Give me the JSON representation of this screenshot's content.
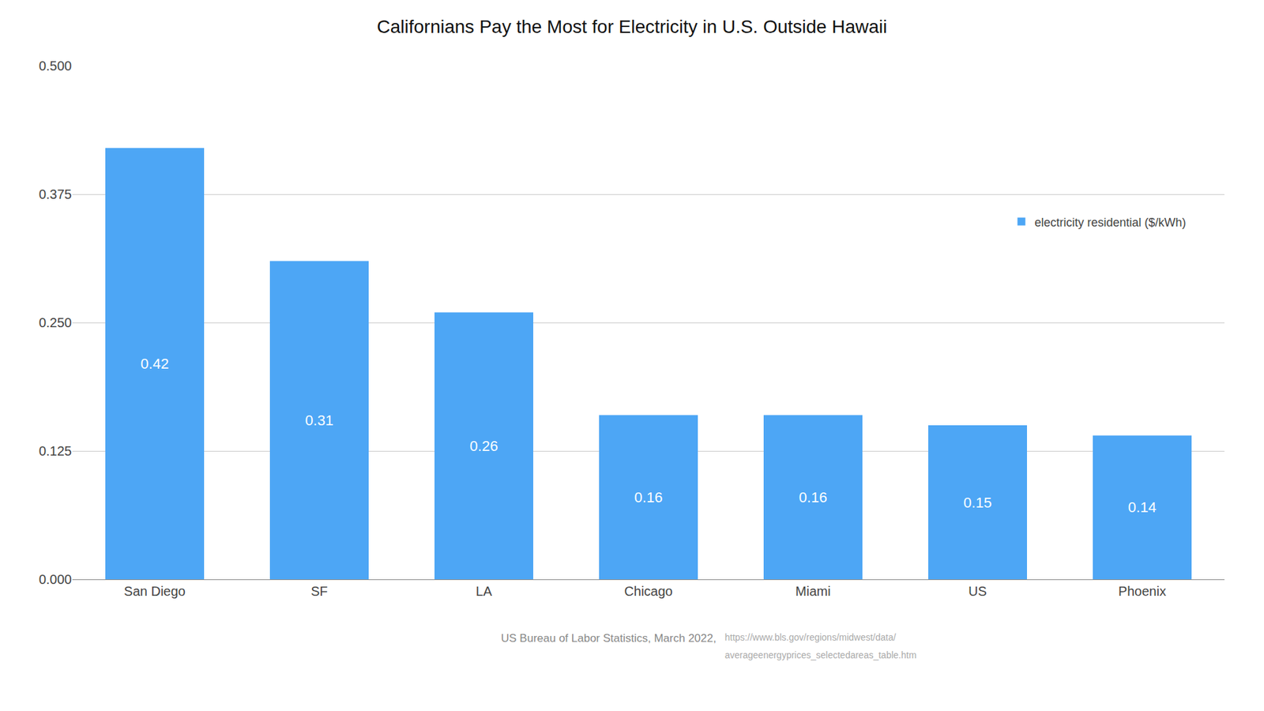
{
  "chart_data": {
    "type": "bar",
    "title": "Californians Pay the Most for Electricity in U.S. Outside Hawaii",
    "categories": [
      "San Diego",
      "SF",
      "LA",
      "Chicago",
      "Miami",
      "US",
      "Phoenix"
    ],
    "series": [
      {
        "name": "electricity residential ($/kWh)",
        "color": "#4da6f5",
        "values": [
          0.42,
          0.31,
          0.26,
          0.16,
          0.16,
          0.15,
          0.14
        ]
      }
    ],
    "ylim": [
      0,
      0.5
    ],
    "yticks": [
      {
        "value": 0,
        "label": "0.000"
      },
      {
        "value": 0.125,
        "label": "0.125"
      },
      {
        "value": 0.25,
        "label": "0.250"
      },
      {
        "value": 0.375,
        "label": "0.375"
      },
      {
        "value": 0.5,
        "label": "0.500"
      }
    ],
    "grid": true,
    "legend": "upper right",
    "data_labels": true,
    "annotations": [
      "US Bureau of Labor Statistics, March 2022,",
      "https://www.bls.gov/regions/midwest/data/",
      "averageenergyprices_selectedareas_table.htm"
    ]
  }
}
